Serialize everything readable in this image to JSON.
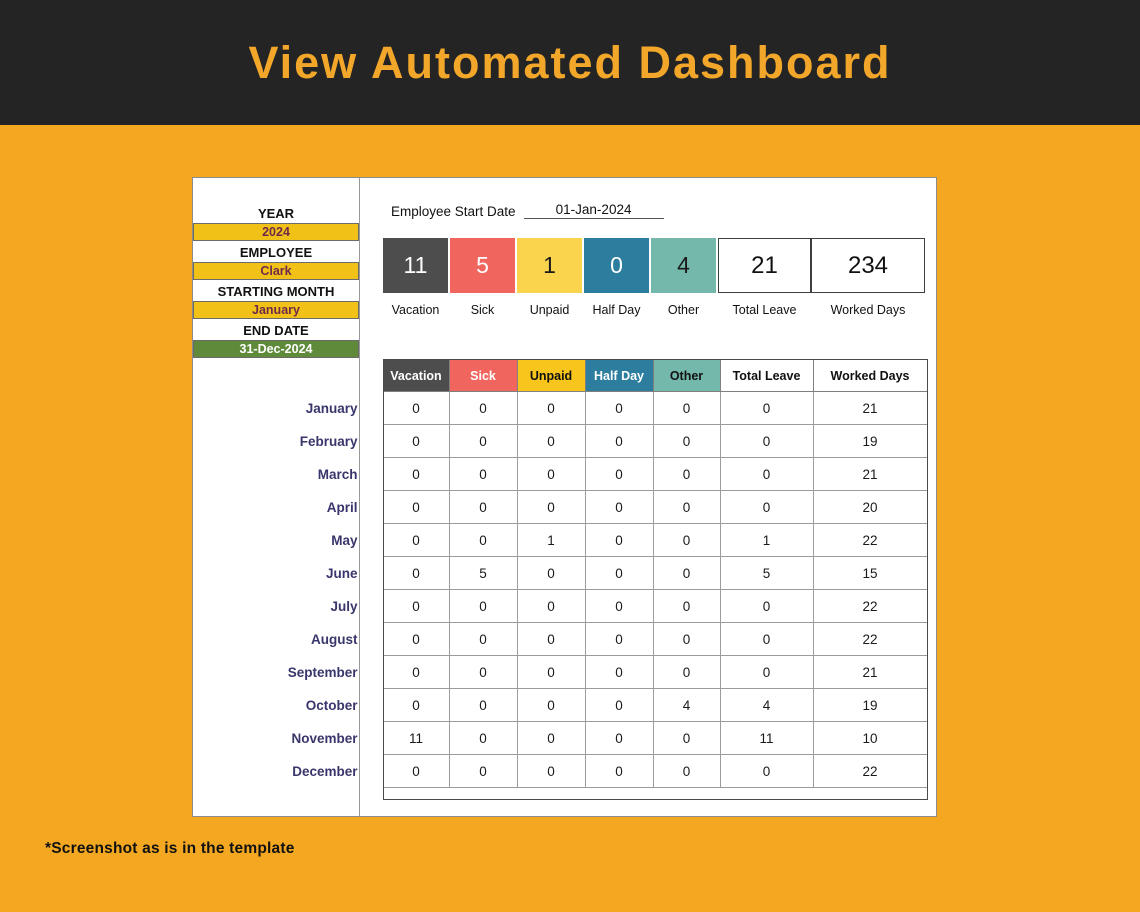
{
  "banner": {
    "title": "View Automated Dashboard"
  },
  "panel": {
    "sidebar": {
      "fields": [
        {
          "id": "year",
          "label": "YEAR",
          "value": "2024",
          "style": "gold",
          "editable": true
        },
        {
          "id": "employee",
          "label": "EMPLOYEE",
          "value": "Clark",
          "style": "gold",
          "editable": true
        },
        {
          "id": "starting-month",
          "label": "STARTING MONTH",
          "value": "January",
          "style": "gold",
          "editable": true
        },
        {
          "id": "end-date",
          "label": "END DATE",
          "value": "31-Dec-2024",
          "style": "green",
          "editable": false
        }
      ]
    },
    "start_date": {
      "label": "Employee Start Date",
      "value": "01-Jan-2024"
    },
    "summary": {
      "cards": [
        {
          "value": "11",
          "label": "Vacation",
          "bg": "#4d4d4d",
          "text": "#ffffff",
          "style": "colored"
        },
        {
          "value": "5",
          "label": "Sick",
          "bg": "#f0655d",
          "text": "#ffffff",
          "style": "colored"
        },
        {
          "value": "1",
          "label": "Unpaid",
          "bg": "#fbd44e",
          "text": "#1a1a1a",
          "style": "colored"
        },
        {
          "value": "0",
          "label": "Half Day",
          "bg": "#2d7d9f",
          "text": "#ffffff",
          "style": "colored"
        },
        {
          "value": "4",
          "label": "Other",
          "bg": "#74b8ab",
          "text": "#1a1a1a",
          "style": "colored"
        },
        {
          "value": "21",
          "label": "Total Leave",
          "bg": "#ffffff",
          "text": "#111111",
          "style": "white"
        },
        {
          "value": "234",
          "label": "Worked Days",
          "bg": "#ffffff",
          "text": "#111111",
          "style": "white"
        }
      ]
    },
    "table": {
      "headers": [
        {
          "label": "Vacation",
          "bg": "#4d4d4d",
          "text": "#ffffff"
        },
        {
          "label": "Sick",
          "bg": "#f0655d",
          "text": "#ffffff"
        },
        {
          "label": "Unpaid",
          "bg": "#f7c51b",
          "text": "#111111"
        },
        {
          "label": "Half Day",
          "bg": "#2d7d9f",
          "text": "#ffffff"
        },
        {
          "label": "Other",
          "bg": "#74b8ab",
          "text": "#111111"
        },
        {
          "label": "Total Leave",
          "bg": "#ffffff",
          "text": "#111111"
        },
        {
          "label": "Worked Days",
          "bg": "#ffffff",
          "text": "#111111"
        }
      ],
      "rows": [
        {
          "month": "January",
          "values": [
            "0",
            "0",
            "0",
            "0",
            "0",
            "0",
            "21"
          ]
        },
        {
          "month": "February",
          "values": [
            "0",
            "0",
            "0",
            "0",
            "0",
            "0",
            "19"
          ]
        },
        {
          "month": "March",
          "values": [
            "0",
            "0",
            "0",
            "0",
            "0",
            "0",
            "21"
          ]
        },
        {
          "month": "April",
          "values": [
            "0",
            "0",
            "0",
            "0",
            "0",
            "0",
            "20"
          ]
        },
        {
          "month": "May",
          "values": [
            "0",
            "0",
            "1",
            "0",
            "0",
            "1",
            "22"
          ]
        },
        {
          "month": "June",
          "values": [
            "0",
            "5",
            "0",
            "0",
            "0",
            "5",
            "15"
          ]
        },
        {
          "month": "July",
          "values": [
            "0",
            "0",
            "0",
            "0",
            "0",
            "0",
            "22"
          ]
        },
        {
          "month": "August",
          "values": [
            "0",
            "0",
            "0",
            "0",
            "0",
            "0",
            "22"
          ]
        },
        {
          "month": "September",
          "values": [
            "0",
            "0",
            "0",
            "0",
            "0",
            "0",
            "21"
          ]
        },
        {
          "month": "October",
          "values": [
            "0",
            "0",
            "0",
            "0",
            "4",
            "4",
            "19"
          ]
        },
        {
          "month": "November",
          "values": [
            "11",
            "0",
            "0",
            "0",
            "0",
            "11",
            "10"
          ]
        },
        {
          "month": "December",
          "values": [
            "0",
            "0",
            "0",
            "0",
            "0",
            "0",
            "22"
          ]
        }
      ]
    }
  },
  "footnote": "*Screenshot as is in the template",
  "colors": {
    "page_background": "#f4a821",
    "banner_background": "#242424",
    "banner_text": "#f3a72a",
    "gold_cell": "#f2c117",
    "green_cell": "#5e8a3a",
    "month_label": "#39366b"
  }
}
